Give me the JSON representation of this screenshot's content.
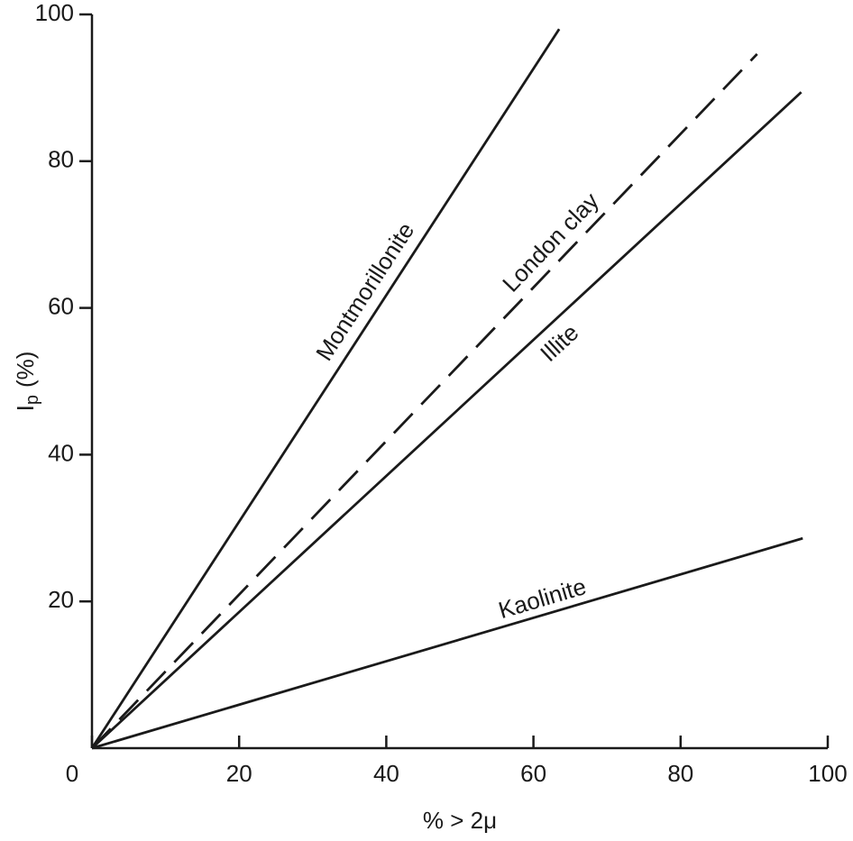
{
  "chart_data": {
    "type": "line",
    "xlabel": "% > 2μ",
    "ylabel": {
      "text": "I",
      "subscript": "p",
      "suffix": "(%)"
    },
    "xlim": [
      0,
      100
    ],
    "xticks": [
      0,
      20,
      40,
      60,
      80,
      100
    ],
    "ylim": [
      0,
      100
    ],
    "yticks": [
      20,
      40,
      60,
      80,
      100
    ],
    "series": [
      {
        "name": "Montmorillonite",
        "color": "#1a1a1a",
        "dashed": false,
        "x": [
          0,
          63.5
        ],
        "values": [
          0,
          98
        ]
      },
      {
        "name": "London clay",
        "color": "#1a1a1a",
        "dashed": true,
        "x": [
          0,
          90.4
        ],
        "values": [
          0,
          94.6
        ]
      },
      {
        "name": "Illite",
        "color": "#1a1a1a",
        "dashed": false,
        "x": [
          0,
          96.4
        ],
        "values": [
          0,
          89.4
        ]
      },
      {
        "name": "Kaolinite",
        "color": "#1a1a1a",
        "dashed": false,
        "x": [
          0,
          96.6
        ],
        "values": [
          0,
          28.6
        ]
      }
    ]
  }
}
